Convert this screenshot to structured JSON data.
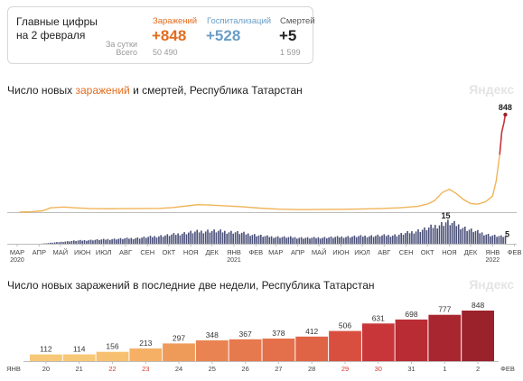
{
  "summary": {
    "title": "Главные цифры на 2 февраля",
    "row_labels": {
      "per_day": "За сутки",
      "total": "Всего"
    },
    "columns": [
      {
        "label": "Заражений",
        "value": "+848",
        "total": "50 490",
        "color": "#e36c1e"
      },
      {
        "label": "Госпитализаций",
        "value": "+528",
        "total": "",
        "color": "#6a9ec7"
      },
      {
        "label": "Смертей",
        "value": "+5",
        "total": "1 599",
        "color": "#222222"
      }
    ]
  },
  "chart1": {
    "title_before": "Число новых ",
    "title_highlight": "заражений",
    "title_after": " и смертей, Республика Татарстан",
    "brand": "Яндекс"
  },
  "chart2": {
    "title": "Число новых заражений в последние две недели, Республика Татарстан",
    "brand": "Яндекс"
  },
  "chart_data": [
    {
      "type": "line",
      "series": [
        {
          "name": "Заражений",
          "color": "#f0b45a",
          "x": [
            "2020-03-18",
            "2020-04-05",
            "2020-04-20",
            "2020-05-01",
            "2020-05-20",
            "2020-06-05",
            "2020-06-25",
            "2020-07-15",
            "2020-08-10",
            "2020-09-05",
            "2020-10-01",
            "2020-10-20",
            "2020-11-10",
            "2020-11-25",
            "2020-12-10",
            "2021-01-05",
            "2021-01-25",
            "2021-02-20",
            "2021-03-20",
            "2021-04-20",
            "2021-05-20",
            "2021-06-20",
            "2021-07-15",
            "2021-08-10",
            "2021-09-05",
            "2021-10-01",
            "2021-10-15",
            "2021-10-25",
            "2021-11-05",
            "2021-11-15",
            "2021-11-25",
            "2021-12-05",
            "2021-12-15",
            "2021-12-25",
            "2022-01-05",
            "2022-01-15",
            "2022-01-20",
            "2022-01-25",
            "2022-01-28",
            "2022-01-31",
            "2022-02-02"
          ],
          "values": [
            0,
            5,
            12,
            38,
            45,
            38,
            32,
            30,
            31,
            32,
            33,
            40,
            55,
            65,
            62,
            54,
            48,
            35,
            26,
            22,
            24,
            25,
            28,
            32,
            38,
            50,
            70,
            100,
            170,
            200,
            160,
            110,
            75,
            70,
            90,
            140,
            270,
            500,
            697,
            777,
            848
          ]
        },
        {
          "name": "Смертей",
          "color": "#4a4f78",
          "x": [
            "2020-04-15",
            "2020-06-01",
            "2020-07-15",
            "2020-09-01",
            "2020-10-15",
            "2020-11-15",
            "2020-12-10",
            "2021-01-15",
            "2021-03-01",
            "2021-05-01",
            "2021-07-01",
            "2021-09-01",
            "2021-10-10",
            "2021-10-30",
            "2021-11-10",
            "2021-11-25",
            "2021-12-10",
            "2021-12-25",
            "2022-01-10",
            "2022-01-25",
            "2022-02-02"
          ],
          "values": [
            0,
            2,
            3,
            4,
            6,
            8,
            9,
            8,
            5,
            4,
            5,
            6,
            10,
            13,
            15,
            13,
            10,
            8,
            6,
            5,
            5
          ]
        }
      ],
      "data_labels": {
        "infections_last": "848",
        "deaths_peak": "15",
        "deaths_last": "5"
      },
      "x_ticks": [
        {
          "label": "МАР",
          "sub": "2020",
          "date": "2020-03-15"
        },
        {
          "label": "АПР",
          "sub": "",
          "date": "2020-04-15"
        },
        {
          "label": "МАЙ",
          "sub": "",
          "date": "2020-05-15"
        },
        {
          "label": "ИЮН",
          "sub": "",
          "date": "2020-06-15"
        },
        {
          "label": "ИЮЛ",
          "sub": "",
          "date": "2020-07-15"
        },
        {
          "label": "АВГ",
          "sub": "",
          "date": "2020-08-15"
        },
        {
          "label": "СЕН",
          "sub": "",
          "date": "2020-09-15"
        },
        {
          "label": "ОКТ",
          "sub": "",
          "date": "2020-10-15"
        },
        {
          "label": "НОЯ",
          "sub": "",
          "date": "2020-11-15"
        },
        {
          "label": "ДЕК",
          "sub": "",
          "date": "2020-12-15"
        },
        {
          "label": "ЯНВ",
          "sub": "2021",
          "date": "2021-01-15"
        },
        {
          "label": "ФЕВ",
          "sub": "",
          "date": "2021-02-15"
        },
        {
          "label": "МАР",
          "sub": "",
          "date": "2021-03-15"
        },
        {
          "label": "АПР",
          "sub": "",
          "date": "2021-04-15"
        },
        {
          "label": "МАЙ",
          "sub": "",
          "date": "2021-05-15"
        },
        {
          "label": "ИЮН",
          "sub": "",
          "date": "2021-06-15"
        },
        {
          "label": "ИЮЛ",
          "sub": "",
          "date": "2021-07-15"
        },
        {
          "label": "АВГ",
          "sub": "",
          "date": "2021-08-15"
        },
        {
          "label": "СЕН",
          "sub": "",
          "date": "2021-09-15"
        },
        {
          "label": "ОКТ",
          "sub": "",
          "date": "2021-10-15"
        },
        {
          "label": "НОЯ",
          "sub": "",
          "date": "2021-11-15"
        },
        {
          "label": "ДЕК",
          "sub": "",
          "date": "2021-12-15"
        },
        {
          "label": "ЯНВ",
          "sub": "2022",
          "date": "2022-01-15"
        },
        {
          "label": "ФЕВ",
          "sub": "",
          "date": "2022-02-15"
        }
      ],
      "xlim": [
        "2020-03-01",
        "2022-02-18"
      ],
      "ylim_infections": [
        0,
        848
      ],
      "ylim_deaths": [
        0,
        15
      ],
      "grid": false
    },
    {
      "type": "bar",
      "categories": [
        "20",
        "21",
        "22",
        "23",
        "24",
        "25",
        "26",
        "27",
        "28",
        "29",
        "30",
        "31",
        "1",
        "2"
      ],
      "category_weekend": [
        false,
        false,
        true,
        true,
        false,
        false,
        false,
        false,
        false,
        true,
        true,
        false,
        false,
        false
      ],
      "month_labels": {
        "start": "ЯНВ",
        "end": "ФЕВ"
      },
      "values": [
        112,
        114,
        156,
        213,
        297,
        348,
        367,
        378,
        412,
        506,
        631,
        698,
        777,
        848
      ],
      "colors": [
        "#f7c877",
        "#f7c877",
        "#f7c070",
        "#f5b066",
        "#ee9a59",
        "#e98452",
        "#e6794e",
        "#e3704a",
        "#df6446",
        "#d84f40",
        "#c9363a",
        "#b92c34",
        "#a8262f",
        "#9b212b"
      ],
      "ylim": [
        0,
        848
      ],
      "weekend_color": "#d9382c"
    }
  ]
}
